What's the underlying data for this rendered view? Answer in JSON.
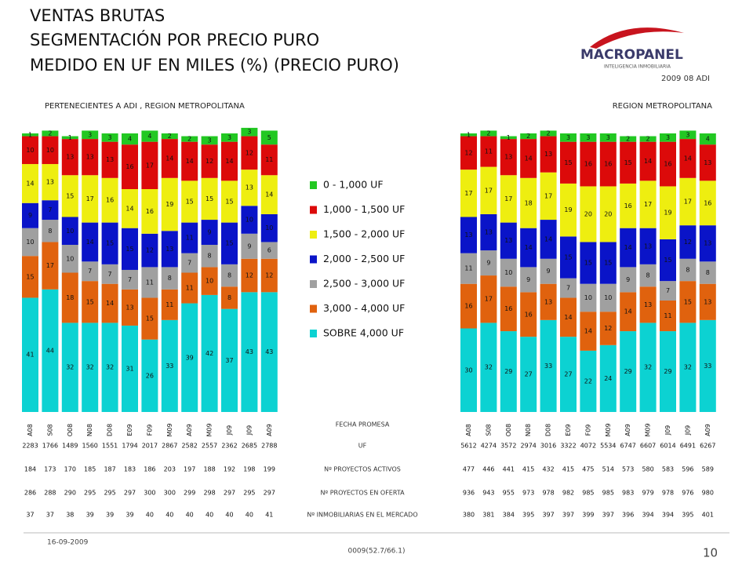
{
  "header": {
    "title_lines": [
      "VENTAS BRUTAS",
      "SEGMENTACIÓN POR PRECIO PURO",
      "MEDIDO EN UF EN MILES (%) (PRECIO PURO)"
    ],
    "logo": "MACROPANEL",
    "logo_sub": "INTELIGENCIA INMOBILIARIA",
    "period": "2009 08 ADI"
  },
  "legend": [
    {
      "name": "0 - 1,000 UF",
      "color": "#22c822"
    },
    {
      "name": "1,000 - 1,500 UF",
      "color": "#dc0a0a"
    },
    {
      "name": "1,500 - 2,000 UF",
      "color": "#eeee10"
    },
    {
      "name": "2,000 - 2,500 UF",
      "color": "#0a14c8"
    },
    {
      "name": "2,500 - 3,000 UF",
      "color": "#a0a0a0"
    },
    {
      "name": "3,000 - 4,000 UF",
      "color": "#e0620e"
    },
    {
      "name": "SOBRE 4,000 UF",
      "color": "#0cd2d2"
    }
  ],
  "row_labels": {
    "date": "FECHA PROMESA",
    "uf": "UF",
    "active": "Nº PROYECTOS ACTIVOS",
    "offer": "Nº PROYECTOS EN OFERTA",
    "developers": "Nº INMOBILIARIAS EN EL MERCADO"
  },
  "chart_data": [
    {
      "type": "bar",
      "stacked": true,
      "title": "PERTENECIENTES A ADI , REGION METROPOLITANA",
      "categories": [
        "A08",
        "S08",
        "O08",
        "N08",
        "D08",
        "E09",
        "F09",
        "M09",
        "A09",
        "M09",
        "J09",
        "J09",
        "A09"
      ],
      "ylim": [
        0,
        100
      ],
      "series": [
        {
          "values": [
            1,
            2,
            1,
            3,
            3,
            4,
            4,
            2,
            2,
            3,
            3,
            3,
            5
          ]
        },
        {
          "values": [
            10,
            10,
            13,
            13,
            13,
            16,
            17,
            14,
            14,
            12,
            14,
            12,
            11
          ]
        },
        {
          "values": [
            14,
            13,
            15,
            17,
            16,
            14,
            16,
            19,
            15,
            15,
            15,
            13,
            14
          ]
        },
        {
          "values": [
            9,
            7,
            10,
            14,
            15,
            15,
            12,
            13,
            11,
            9,
            15,
            10,
            10
          ]
        },
        {
          "values": [
            10,
            8,
            10,
            7,
            7,
            7,
            11,
            8,
            7,
            8,
            8,
            9,
            6
          ]
        },
        {
          "values": [
            15,
            17,
            18,
            15,
            14,
            13,
            15,
            11,
            11,
            10,
            8,
            12,
            12
          ]
        },
        {
          "values": [
            41,
            44,
            32,
            32,
            32,
            31,
            26,
            33,
            39,
            42,
            37,
            43,
            43
          ]
        }
      ],
      "table": {
        "uf": [
          2283,
          1766,
          1489,
          1560,
          1551,
          1794,
          2017,
          2867,
          2582,
          2557,
          2362,
          2685,
          2788
        ],
        "active": [
          184,
          173,
          170,
          185,
          187,
          183,
          186,
          203,
          197,
          188,
          192,
          198,
          199
        ],
        "offer": [
          286,
          288,
          290,
          295,
          295,
          297,
          300,
          300,
          299,
          298,
          297,
          295,
          297
        ],
        "developers": [
          37,
          37,
          38,
          39,
          39,
          39,
          40,
          40,
          40,
          40,
          40,
          40,
          41
        ]
      }
    },
    {
      "type": "bar",
      "stacked": true,
      "title": "REGION METROPOLITANA",
      "categories": [
        "A08",
        "S08",
        "O08",
        "N08",
        "D08",
        "E09",
        "F09",
        "M09",
        "A09",
        "M09",
        "J09",
        "J09",
        "A09"
      ],
      "ylim": [
        0,
        100
      ],
      "series": [
        {
          "values": [
            1,
            2,
            1,
            2,
            2,
            3,
            3,
            3,
            2,
            2,
            3,
            3,
            4
          ]
        },
        {
          "values": [
            12,
            11,
            13,
            14,
            13,
            15,
            16,
            16,
            15,
            14,
            16,
            14,
            13
          ]
        },
        {
          "values": [
            17,
            17,
            17,
            18,
            17,
            19,
            20,
            20,
            16,
            17,
            19,
            17,
            16
          ]
        },
        {
          "values": [
            13,
            13,
            13,
            14,
            14,
            15,
            15,
            15,
            14,
            13,
            15,
            12,
            13
          ]
        },
        {
          "values": [
            11,
            9,
            10,
            9,
            9,
            7,
            10,
            10,
            9,
            8,
            7,
            8,
            8
          ]
        },
        {
          "values": [
            16,
            17,
            16,
            16,
            13,
            14,
            14,
            12,
            14,
            13,
            11,
            15,
            13
          ]
        },
        {
          "values": [
            30,
            32,
            29,
            27,
            33,
            27,
            22,
            24,
            29,
            32,
            29,
            32,
            33
          ]
        }
      ],
      "table": {
        "uf": [
          5612,
          4274,
          3572,
          2974,
          3016,
          3322,
          4072,
          5534,
          6747,
          6607,
          6014,
          6491,
          6267
        ],
        "active": [
          477,
          446,
          441,
          415,
          432,
          415,
          475,
          514,
          573,
          580,
          583,
          596,
          589
        ],
        "offer": [
          936,
          943,
          955,
          973,
          978,
          982,
          985,
          985,
          983,
          979,
          978,
          976,
          980
        ],
        "developers": [
          380,
          381,
          384,
          395,
          397,
          397,
          399,
          397,
          396,
          394,
          394,
          395,
          401
        ]
      }
    }
  ],
  "footer": {
    "date": "16-09-2009",
    "code": "0009(52.7/66.1)",
    "page": "10"
  }
}
